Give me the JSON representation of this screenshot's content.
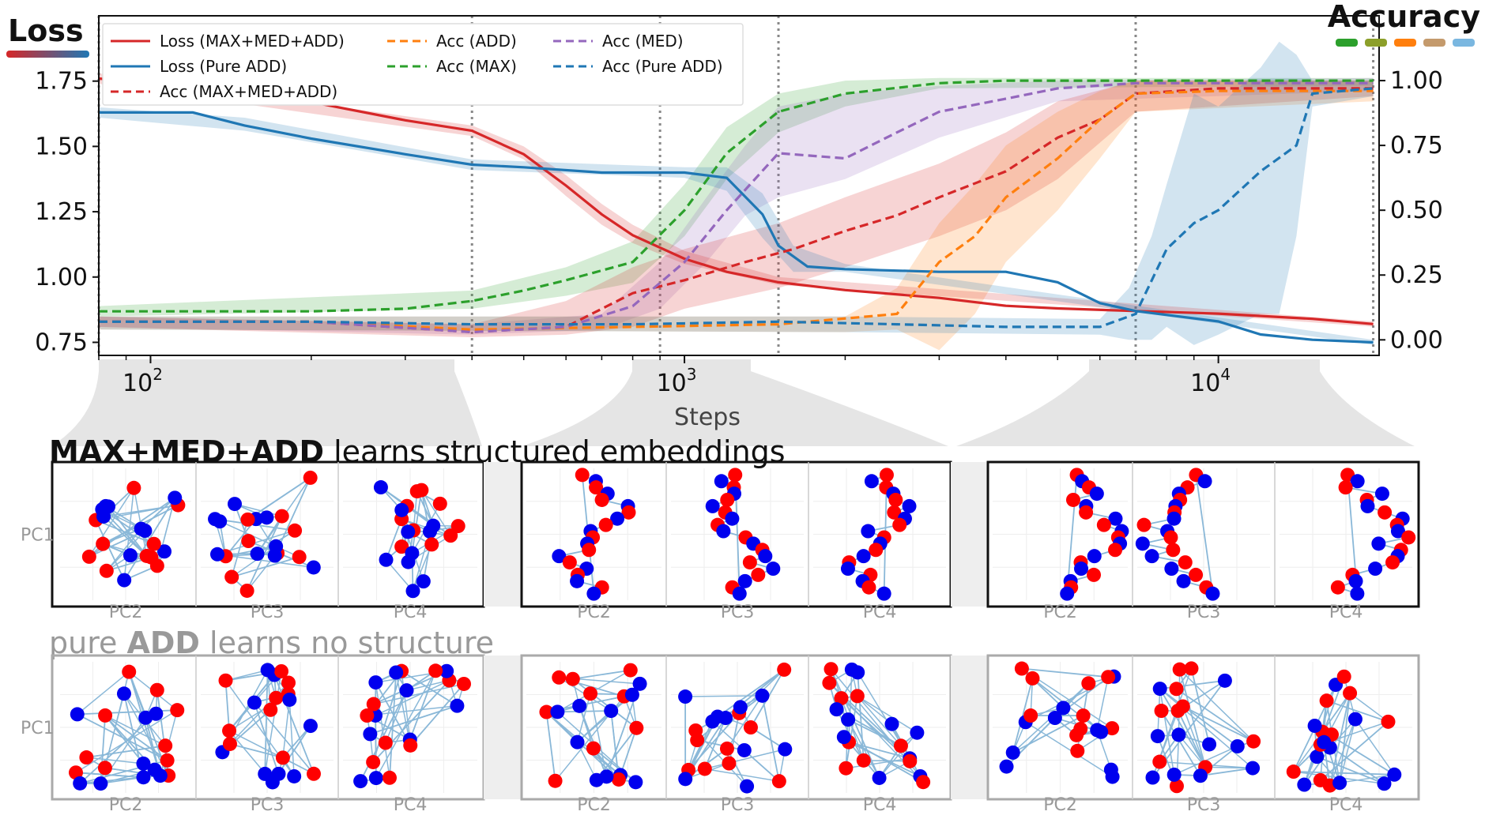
{
  "chart_data": {
    "type": "line",
    "xlabel": "Steps",
    "x_scale": "log",
    "xlim": [
      80,
      20000
    ],
    "x_ticks": [
      100,
      1000,
      10000
    ],
    "x_tick_labels": [
      "10",
      "10",
      "10"
    ],
    "x_tick_exponents": [
      "2",
      "3",
      "4"
    ],
    "left_axis_label": "Loss",
    "right_axis_label": "Accuracy",
    "ylim_left": [
      0.7,
      2.0
    ],
    "y_ticks_left": [
      "0.75",
      "1.00",
      "1.25",
      "1.50",
      "1.75"
    ],
    "ylim_right": [
      -0.06,
      1.25
    ],
    "y_ticks_right": [
      "0.00",
      "0.25",
      "0.50",
      "0.75",
      "1.00"
    ],
    "vertical_markers": [
      80,
      400,
      900,
      1500,
      7000,
      19500
    ],
    "series": [
      {
        "name": "Loss  (MAX+MED+ADD)",
        "axis": "left",
        "style": "solid",
        "color": "#d62728",
        "x": [
          80,
          100,
          150,
          200,
          300,
          400,
          500,
          600,
          700,
          800,
          1000,
          1200,
          1500,
          2000,
          3000,
          4000,
          5000,
          7000,
          10000,
          15000,
          19500
        ],
        "y": [
          1.76,
          1.74,
          1.7,
          1.67,
          1.6,
          1.56,
          1.47,
          1.35,
          1.24,
          1.16,
          1.07,
          1.02,
          0.98,
          0.95,
          0.92,
          0.89,
          0.88,
          0.87,
          0.86,
          0.84,
          0.82
        ]
      },
      {
        "name": "Loss  (Pure ADD)",
        "axis": "left",
        "style": "solid",
        "color": "#1f77b4",
        "x": [
          80,
          100,
          120,
          150,
          200,
          300,
          400,
          500,
          700,
          1000,
          1200,
          1400,
          1500,
          1700,
          2000,
          3000,
          4000,
          5000,
          6000,
          7000,
          10000,
          12000,
          15000,
          19500
        ],
        "y": [
          1.63,
          1.63,
          1.63,
          1.58,
          1.53,
          1.47,
          1.43,
          1.42,
          1.4,
          1.4,
          1.38,
          1.24,
          1.12,
          1.04,
          1.03,
          1.02,
          1.02,
          0.98,
          0.9,
          0.87,
          0.83,
          0.78,
          0.76,
          0.75
        ]
      },
      {
        "name": "Acc   (MAX+MED+ADD)",
        "axis": "right",
        "style": "dashed",
        "color": "#d62728",
        "x": [
          80,
          200,
          400,
          600,
          800,
          1000,
          1300,
          1600,
          2000,
          2500,
          3000,
          4000,
          5000,
          6000,
          7000,
          10000,
          19500
        ],
        "y": [
          0.07,
          0.07,
          0.03,
          0.05,
          0.18,
          0.23,
          0.3,
          0.35,
          0.42,
          0.48,
          0.55,
          0.65,
          0.78,
          0.85,
          0.95,
          0.97,
          0.97
        ]
      },
      {
        "name": "Acc  (ADD)",
        "axis": "right",
        "style": "dashed",
        "color": "#ff7f0e",
        "x": [
          80,
          200,
          400,
          800,
          1500,
          2500,
          3000,
          3500,
          4000,
          5000,
          6000,
          7000,
          10000,
          19500
        ],
        "y": [
          0.07,
          0.07,
          0.04,
          0.05,
          0.06,
          0.1,
          0.3,
          0.4,
          0.55,
          0.7,
          0.85,
          0.95,
          0.96,
          0.96
        ]
      },
      {
        "name": "Acc  (MAX)",
        "axis": "right",
        "style": "dashed",
        "color": "#2ca02c",
        "x": [
          80,
          200,
          300,
          400,
          500,
          600,
          800,
          1000,
          1200,
          1500,
          1700,
          2000,
          3000,
          4000,
          5000,
          7000,
          19500
        ],
        "y": [
          0.11,
          0.11,
          0.12,
          0.15,
          0.19,
          0.23,
          0.3,
          0.5,
          0.72,
          0.88,
          0.91,
          0.95,
          0.99,
          1.0,
          1.0,
          1.0,
          1.0
        ]
      },
      {
        "name": "Acc  (MED)",
        "axis": "right",
        "style": "dashed",
        "color": "#9467bd",
        "x": [
          80,
          200,
          400,
          600,
          800,
          1000,
          1200,
          1500,
          2000,
          2500,
          3000,
          4000,
          5000,
          7000,
          19500
        ],
        "y": [
          0.07,
          0.07,
          0.03,
          0.05,
          0.13,
          0.3,
          0.5,
          0.72,
          0.7,
          0.8,
          0.88,
          0.93,
          0.97,
          0.99,
          0.99
        ]
      },
      {
        "name": "Acc  (Pure ADD)",
        "axis": "right",
        "style": "dashed",
        "color": "#1f77b4",
        "x": [
          80,
          200,
          400,
          800,
          1500,
          2500,
          4000,
          6000,
          7000,
          8000,
          9000,
          10000,
          12000,
          14000,
          15000,
          19500
        ],
        "y": [
          0.07,
          0.07,
          0.06,
          0.06,
          0.07,
          0.06,
          0.05,
          0.05,
          0.1,
          0.35,
          0.45,
          0.5,
          0.65,
          0.75,
          0.95,
          0.97
        ]
      }
    ],
    "bands": [
      {
        "color": "#2ca02c",
        "axis": "right",
        "x": [
          80,
          400,
          600,
          800,
          1000,
          1200,
          1500,
          2000,
          3000,
          19500
        ],
        "lo": [
          0.09,
          0.12,
          0.17,
          0.22,
          0.4,
          0.62,
          0.8,
          0.9,
          0.97,
          0.98
        ],
        "hi": [
          0.13,
          0.19,
          0.28,
          0.38,
          0.6,
          0.82,
          0.95,
          1.0,
          1.01,
          1.01
        ]
      },
      {
        "color": "#9467bd",
        "axis": "right",
        "x": [
          80,
          400,
          700,
          900,
          1100,
          1300,
          1500,
          2000,
          3000,
          5000,
          19500
        ],
        "lo": [
          0.05,
          0.02,
          0.04,
          0.12,
          0.3,
          0.48,
          0.55,
          0.62,
          0.78,
          0.92,
          0.96
        ],
        "hi": [
          0.09,
          0.06,
          0.1,
          0.3,
          0.55,
          0.75,
          0.9,
          0.95,
          0.98,
          1.0,
          1.01
        ]
      },
      {
        "color": "#d62728",
        "axis": "right",
        "x": [
          80,
          400,
          600,
          800,
          1000,
          1500,
          2000,
          3000,
          4000,
          5000,
          7000,
          19500
        ],
        "lo": [
          0.05,
          0.01,
          0.02,
          0.05,
          0.12,
          0.2,
          0.28,
          0.4,
          0.5,
          0.62,
          0.88,
          0.94
        ],
        "hi": [
          0.09,
          0.06,
          0.15,
          0.28,
          0.35,
          0.45,
          0.55,
          0.68,
          0.8,
          0.92,
          1.0,
          1.0
        ]
      },
      {
        "color": "#ff7f0e",
        "axis": "right",
        "x": [
          80,
          2000,
          2500,
          3000,
          3500,
          4000,
          5000,
          6000,
          7000,
          19500
        ],
        "lo": [
          0.04,
          0.03,
          0.04,
          -0.04,
          0.1,
          0.3,
          0.5,
          0.7,
          0.88,
          0.92
        ],
        "hi": [
          0.09,
          0.09,
          0.2,
          0.45,
          0.6,
          0.75,
          0.88,
          0.96,
          1.0,
          1.0
        ]
      },
      {
        "color": "#1f77b4",
        "axis": "right",
        "x": [
          80,
          2000,
          6000,
          6800,
          7500,
          8000,
          9000,
          10000,
          12000,
          13000,
          14000,
          15000,
          19500
        ],
        "lo": [
          0.04,
          0.03,
          0.02,
          0.0,
          0.0,
          0.05,
          -0.02,
          0.02,
          0.1,
          0.1,
          0.4,
          0.9,
          0.94
        ],
        "hi": [
          0.09,
          0.09,
          0.08,
          0.2,
          0.4,
          0.6,
          0.95,
          0.9,
          1.05,
          1.15,
          1.1,
          1.0,
          1.0
        ]
      },
      {
        "color": "#d62728",
        "axis": "left",
        "x": [
          80,
          400,
          500,
          600,
          700,
          800,
          1000,
          1500,
          19500
        ],
        "lo": [
          1.74,
          1.54,
          1.45,
          1.31,
          1.2,
          1.13,
          1.05,
          0.97,
          0.81
        ],
        "hi": [
          1.78,
          1.58,
          1.5,
          1.39,
          1.28,
          1.2,
          1.1,
          1.0,
          0.83
        ]
      },
      {
        "color": "#1f77b4",
        "axis": "left",
        "x": [
          80,
          150,
          400,
          1000,
          1200,
          1400,
          1600,
          2000,
          19500
        ],
        "lo": [
          1.61,
          1.56,
          1.41,
          1.38,
          1.33,
          1.15,
          1.02,
          1.02,
          0.74
        ],
        "hi": [
          1.65,
          1.61,
          1.45,
          1.42,
          1.42,
          1.32,
          1.12,
          1.05,
          0.76
        ]
      }
    ]
  },
  "legend": [
    {
      "label": "Loss  (MAX+MED+ADD)",
      "color": "#d62728",
      "dashed": false
    },
    {
      "label": "Loss  (Pure ADD)",
      "color": "#1f77b4",
      "dashed": false
    },
    {
      "label": "Acc   (MAX+MED+ADD)",
      "color": "#d62728",
      "dashed": true
    },
    {
      "label": "Acc  (ADD)",
      "color": "#ff7f0e",
      "dashed": true
    },
    {
      "label": "Acc  (MAX)",
      "color": "#2ca02c",
      "dashed": true
    },
    {
      "label": "Acc  (MED)",
      "color": "#9467bd",
      "dashed": true
    },
    {
      "label": "Acc  (Pure ADD)",
      "color": "#1f77b4",
      "dashed": true
    }
  ],
  "accuracy_swatches": [
    "#2ca02c",
    "#8c9f2a",
    "#ff7f0e",
    "#c49a6c",
    "#7ab7e0"
  ],
  "panels": {
    "row1_title_bold": "MAX+MED+ADD",
    "row1_title_rest": " learns structured embeddings",
    "row2_title_start": "pure ",
    "row2_title_bold": "ADD",
    "row2_title_rest": " learns no structure",
    "y_label": "PC1",
    "x_labels": [
      "PC2",
      "PC3",
      "PC4",
      "PC2",
      "PC3",
      "PC4",
      "PC2",
      "PC3",
      "PC4"
    ],
    "point_colors": [
      "#ff0000",
      "#0000ee"
    ],
    "edge_color": "#8ab8d8"
  }
}
